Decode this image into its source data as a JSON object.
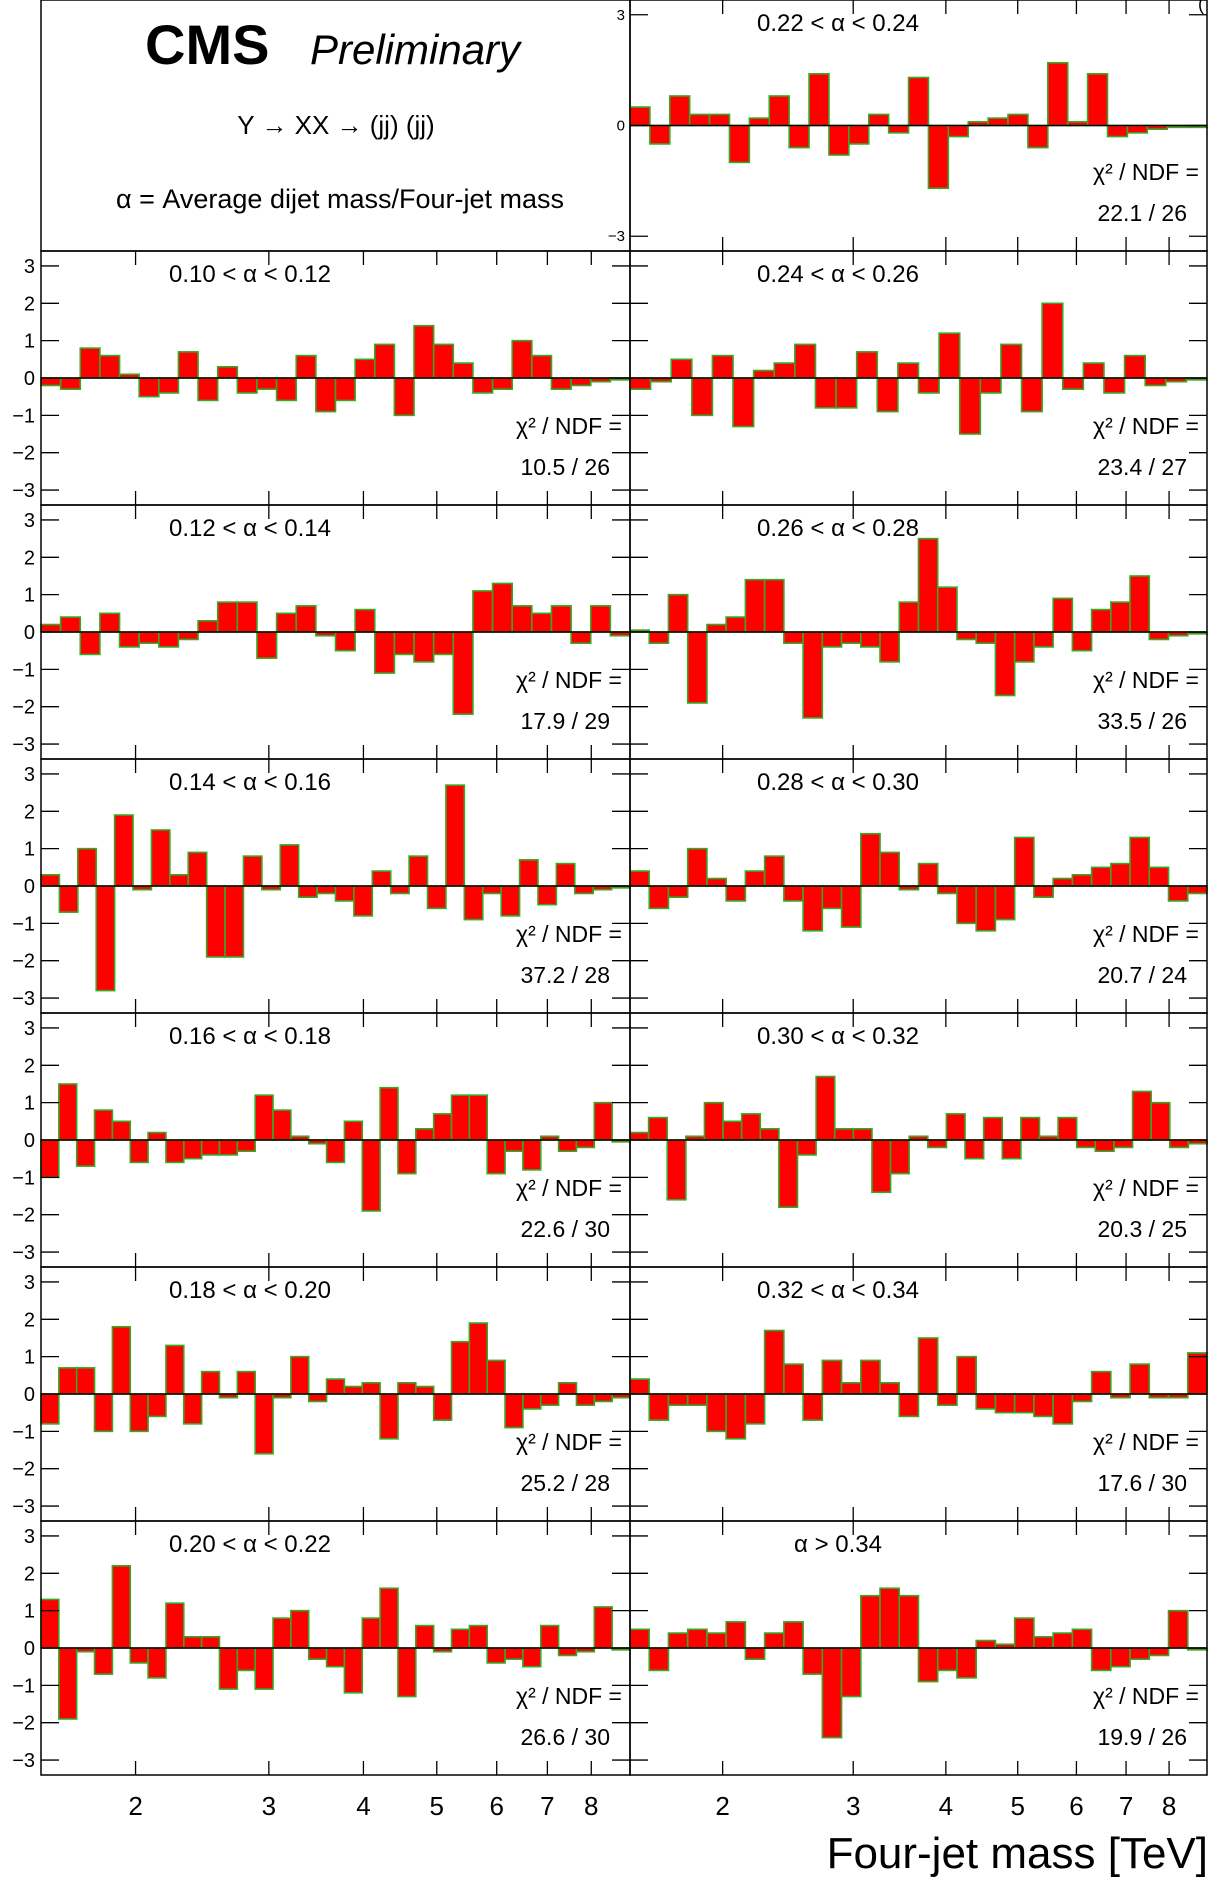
{
  "header": {
    "cms": "CMS",
    "preliminary": "Preliminary",
    "process": "Y → XX → (jj) (jj)",
    "definition": "α = Average dijet mass/Four-jet mass",
    "corner": "("
  },
  "axes": {
    "xlabel": "Four-jet mass [TeV]",
    "x_scale": "log",
    "x_range_tev": [
      1.5,
      9.0
    ],
    "x_ticks": [
      2,
      3,
      4,
      5,
      6,
      7,
      8
    ],
    "y_range": [
      -3.4,
      3.4
    ],
    "y_ticks": [
      -3,
      -2,
      -1,
      0,
      1,
      2,
      3
    ],
    "first_panel_y_ticks": [
      -3,
      0,
      3
    ]
  },
  "chart_data": [
    {
      "type": "bar",
      "panel": "right-1",
      "label": "0.22 < α < 0.24",
      "chi2_label": "χ² / NDF =",
      "chi2": "22.1 / 26",
      "values": [
        0.5,
        -0.5,
        0.8,
        0.3,
        0.3,
        -1.0,
        0.2,
        0.8,
        -0.6,
        1.4,
        -0.8,
        -0.5,
        0.3,
        -0.2,
        1.3,
        -1.7,
        -0.3,
        0.1,
        0.2,
        0.3,
        -0.6,
        1.7,
        0.1,
        1.4,
        -0.3,
        -0.2,
        -0.1,
        -0.05,
        -0.05
      ]
    },
    {
      "type": "bar",
      "panel": "left-2",
      "label": "0.10 < α < 0.12",
      "chi2_label": "χ² / NDF =",
      "chi2": "10.5 / 26",
      "values": [
        -0.2,
        -0.3,
        0.8,
        0.6,
        0.1,
        -0.5,
        -0.4,
        0.7,
        -0.6,
        0.3,
        -0.4,
        -0.3,
        -0.6,
        0.6,
        -0.9,
        -0.6,
        0.5,
        0.9,
        -1.0,
        1.4,
        0.9,
        0.4,
        -0.4,
        -0.3,
        1.0,
        0.6,
        -0.3,
        -0.2,
        -0.1,
        -0.05
      ]
    },
    {
      "type": "bar",
      "panel": "right-2",
      "label": "0.24 < α < 0.26",
      "chi2_label": "χ² / NDF =",
      "chi2": "23.4 / 27",
      "values": [
        -0.3,
        -0.1,
        0.5,
        -1.0,
        0.6,
        -1.3,
        0.2,
        0.4,
        0.9,
        -0.8,
        -0.8,
        0.7,
        -0.9,
        0.4,
        -0.4,
        1.2,
        -1.5,
        -0.4,
        0.9,
        -0.9,
        2.0,
        -0.3,
        0.4,
        -0.4,
        0.6,
        -0.2,
        -0.1,
        -0.05
      ]
    },
    {
      "type": "bar",
      "panel": "left-3",
      "label": "0.12 < α < 0.14",
      "chi2_label": "χ² / NDF =",
      "chi2": "17.9 / 29",
      "values": [
        0.2,
        0.4,
        -0.6,
        0.5,
        -0.4,
        -0.3,
        -0.4,
        -0.2,
        0.3,
        0.8,
        0.8,
        -0.7,
        0.5,
        0.7,
        -0.1,
        -0.5,
        0.6,
        -1.1,
        -0.6,
        -0.8,
        -0.6,
        -2.2,
        1.1,
        1.3,
        0.7,
        0.5,
        0.7,
        -0.3,
        0.7,
        -0.1
      ]
    },
    {
      "type": "bar",
      "panel": "right-3",
      "label": "0.26 < α < 0.28",
      "chi2_label": "χ² / NDF =",
      "chi2": "33.5 / 26",
      "values": [
        0.05,
        -0.3,
        1.0,
        -1.9,
        0.2,
        0.4,
        1.4,
        1.4,
        -0.3,
        -2.3,
        -0.4,
        -0.3,
        -0.4,
        -0.8,
        0.8,
        2.5,
        1.2,
        -0.2,
        -0.3,
        -1.7,
        -0.8,
        -0.4,
        0.9,
        -0.5,
        0.6,
        0.8,
        1.5,
        -0.2,
        -0.1,
        -0.05
      ]
    },
    {
      "type": "bar",
      "panel": "left-4",
      "label": "0.14 < α < 0.16",
      "chi2_label": "χ² / NDF =",
      "chi2": "37.2 / 28",
      "values": [
        0.3,
        -0.7,
        1.0,
        -2.8,
        1.9,
        -0.1,
        1.5,
        0.3,
        0.9,
        -1.9,
        -1.9,
        0.8,
        -0.1,
        1.1,
        -0.3,
        -0.2,
        -0.4,
        -0.8,
        0.4,
        -0.2,
        0.8,
        -0.6,
        2.7,
        -0.9,
        -0.2,
        -0.8,
        0.7,
        -0.5,
        0.6,
        -0.2,
        -0.1,
        -0.05
      ]
    },
    {
      "type": "bar",
      "panel": "right-4",
      "label": "0.28 < α < 0.30",
      "chi2_label": "χ² / NDF =",
      "chi2": "20.7 / 24",
      "values": [
        0.4,
        -0.6,
        -0.3,
        1.0,
        0.2,
        -0.4,
        0.4,
        0.8,
        -0.4,
        -1.2,
        -0.6,
        -1.1,
        1.4,
        0.9,
        -0.1,
        0.6,
        -0.2,
        -1.0,
        -1.2,
        -0.9,
        1.3,
        -0.3,
        0.2,
        0.3,
        0.5,
        0.6,
        1.3,
        0.5,
        -0.4,
        -0.2
      ]
    },
    {
      "type": "bar",
      "panel": "left-5",
      "label": "0.16 < α < 0.18",
      "chi2_label": "χ² / NDF =",
      "chi2": "22.6 / 30",
      "values": [
        -1.0,
        1.5,
        -0.7,
        0.8,
        0.5,
        -0.6,
        0.2,
        -0.6,
        -0.5,
        -0.4,
        -0.4,
        -0.3,
        1.2,
        0.8,
        0.1,
        -0.1,
        -0.6,
        0.5,
        -1.9,
        1.4,
        -0.9,
        0.3,
        0.7,
        1.2,
        1.2,
        -0.9,
        -0.3,
        -0.8,
        0.1,
        -0.3,
        -0.2,
        1.0,
        -0.05
      ]
    },
    {
      "type": "bar",
      "panel": "right-5",
      "label": "0.30 < α < 0.32",
      "chi2_label": "χ² / NDF =",
      "chi2": "20.3 / 25",
      "values": [
        0.2,
        0.6,
        -1.6,
        0.1,
        1.0,
        0.5,
        0.7,
        0.3,
        -1.8,
        -0.4,
        1.7,
        0.3,
        0.3,
        -1.4,
        -0.9,
        0.1,
        -0.2,
        0.7,
        -0.5,
        0.6,
        -0.5,
        0.6,
        0.1,
        0.6,
        -0.2,
        -0.3,
        -0.2,
        1.3,
        1.0,
        -0.2,
        -0.1
      ]
    },
    {
      "type": "bar",
      "panel": "left-6",
      "label": "0.18 < α < 0.20",
      "chi2_label": "χ² / NDF =",
      "chi2": "25.2 / 28",
      "values": [
        -0.8,
        0.7,
        0.7,
        -1.0,
        1.8,
        -1.0,
        -0.6,
        1.3,
        -0.8,
        0.6,
        -0.1,
        0.6,
        -1.6,
        -0.1,
        1.0,
        -0.2,
        0.4,
        0.2,
        0.3,
        -1.2,
        0.3,
        0.2,
        -0.7,
        1.4,
        1.9,
        0.9,
        -0.9,
        -0.4,
        -0.3,
        0.3,
        -0.3,
        -0.2,
        -0.1
      ]
    },
    {
      "type": "bar",
      "panel": "right-6",
      "label": "0.32 < α < 0.34",
      "chi2_label": "χ² / NDF =",
      "chi2": "17.6 / 30",
      "values": [
        0.4,
        -0.7,
        -0.3,
        -0.3,
        -1.0,
        -1.2,
        -0.8,
        1.7,
        0.8,
        -0.7,
        0.9,
        0.3,
        0.9,
        0.3,
        -0.6,
        1.5,
        -0.3,
        1.0,
        -0.4,
        -0.5,
        -0.5,
        -0.6,
        -0.8,
        -0.2,
        0.6,
        -0.1,
        0.8,
        -0.1,
        -0.1,
        1.1
      ]
    },
    {
      "type": "bar",
      "panel": "left-7",
      "label": "0.20 < α < 0.22",
      "chi2_label": "χ² / NDF =",
      "chi2": "26.6 / 30",
      "values": [
        1.3,
        -1.9,
        -0.1,
        -0.7,
        2.2,
        -0.4,
        -0.8,
        1.2,
        0.3,
        0.3,
        -1.1,
        -0.6,
        -1.1,
        0.8,
        1.0,
        -0.3,
        -0.5,
        -1.2,
        0.8,
        1.6,
        -1.3,
        0.6,
        -0.1,
        0.5,
        0.6,
        -0.4,
        -0.3,
        -0.5,
        0.6,
        -0.2,
        -0.1,
        1.1,
        -0.05
      ]
    },
    {
      "type": "bar",
      "panel": "right-7",
      "label": "α > 0.34",
      "chi2_label": "χ² / NDF =",
      "chi2": "19.9 / 26",
      "values": [
        0.5,
        -0.6,
        0.4,
        0.5,
        0.4,
        0.7,
        -0.3,
        0.4,
        0.7,
        -0.7,
        -2.4,
        -1.3,
        1.4,
        1.6,
        1.4,
        -0.9,
        -0.6,
        -0.8,
        0.2,
        0.1,
        0.8,
        0.3,
        0.4,
        0.5,
        -0.6,
        -0.5,
        -0.3,
        -0.2,
        1.0,
        -0.05
      ]
    }
  ]
}
